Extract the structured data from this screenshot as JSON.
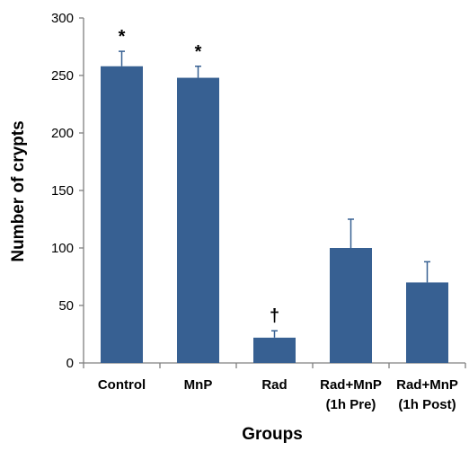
{
  "chart_data": {
    "type": "bar",
    "title": "",
    "xlabel": "Groups",
    "ylabel": "Number of crypts",
    "ylim": [
      0,
      300
    ],
    "yticks": [
      0,
      50,
      100,
      150,
      200,
      250,
      300
    ],
    "categories": [
      [
        "Control"
      ],
      [
        "MnP"
      ],
      [
        "Rad"
      ],
      [
        "Rad+MnP",
        "(1h Pre)"
      ],
      [
        "Rad+MnP",
        "(1h Post)"
      ]
    ],
    "values": [
      258,
      248,
      22,
      100,
      70
    ],
    "errors": [
      13,
      10,
      6,
      25,
      18
    ],
    "markers": [
      "*",
      "*",
      "†",
      "",
      ""
    ],
    "bar_color": "#376092",
    "grid": false,
    "legend": "none"
  }
}
